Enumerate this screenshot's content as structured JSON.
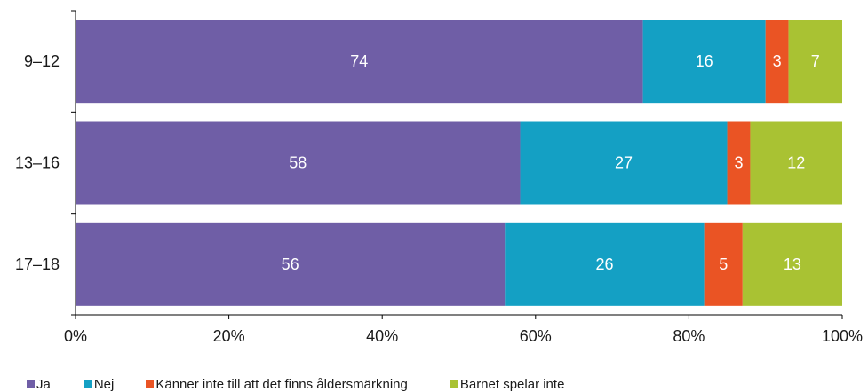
{
  "chart_data": {
    "type": "bar",
    "orientation": "horizontal",
    "stacked": "percent",
    "categories": [
      "9–12",
      "13–16",
      "17–18"
    ],
    "series": [
      {
        "name": "Ja",
        "values": [
          74,
          58,
          56
        ],
        "color": "#6f5ea6"
      },
      {
        "name": "Nej",
        "values": [
          16,
          27,
          26
        ],
        "color": "#14a0c4"
      },
      {
        "name": "Känner inte till att det finns åldersmärkning",
        "values": [
          3,
          3,
          5
        ],
        "color": "#ea5424"
      },
      {
        "name": "Barnet spelar inte",
        "values": [
          7,
          12,
          13
        ],
        "color": "#a9c233"
      }
    ],
    "xlim": [
      0,
      100
    ],
    "x_ticks": [
      "0%",
      "20%",
      "40%",
      "60%",
      "80%",
      "100%"
    ],
    "grid": false,
    "legend_position": "bottom-left"
  }
}
